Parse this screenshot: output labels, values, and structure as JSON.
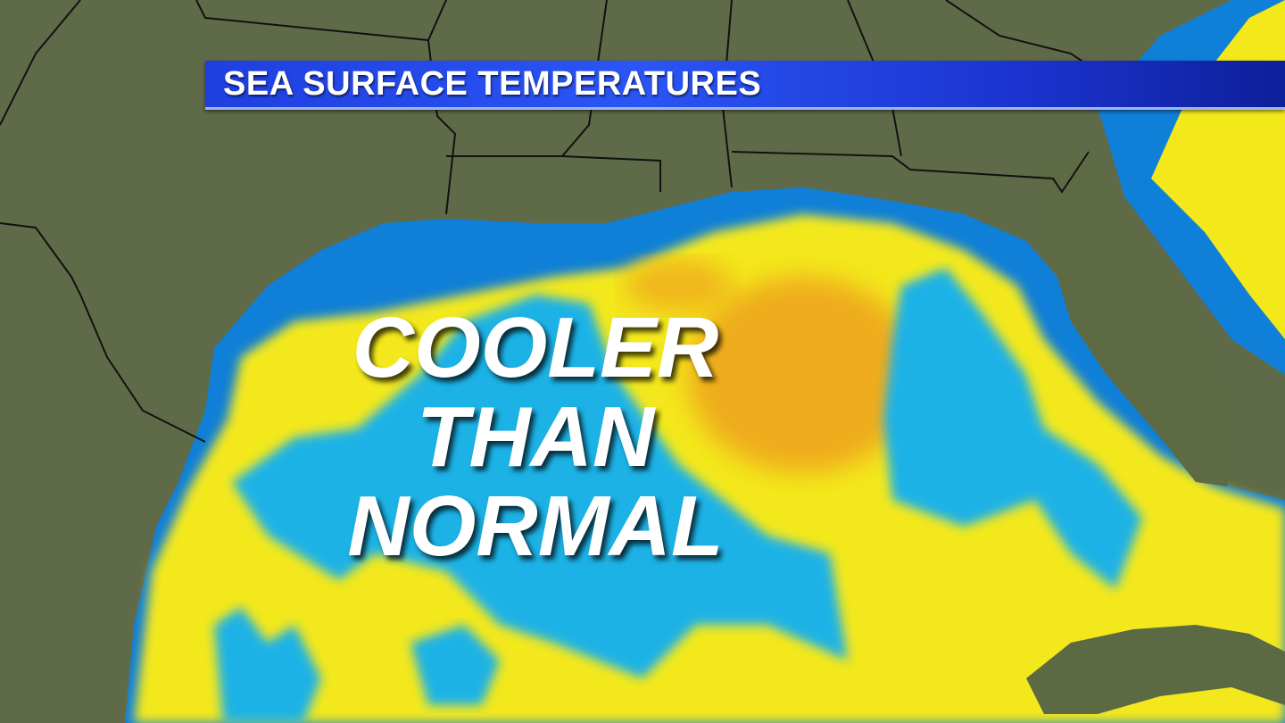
{
  "title_bar": {
    "label": "SEA SURFACE TEMPERATURES"
  },
  "headline": {
    "lines": [
      "COOLER",
      "THAN",
      "NORMAL"
    ]
  },
  "colors": {
    "land": "#5f6a48",
    "cooler_than_normal": "#1fb2e6",
    "coastal_cool": "#0f7fd8",
    "warmer_than_normal": "#f3e81a",
    "much_warmer": "#eea21a",
    "title_bar": "#2a55f5"
  }
}
